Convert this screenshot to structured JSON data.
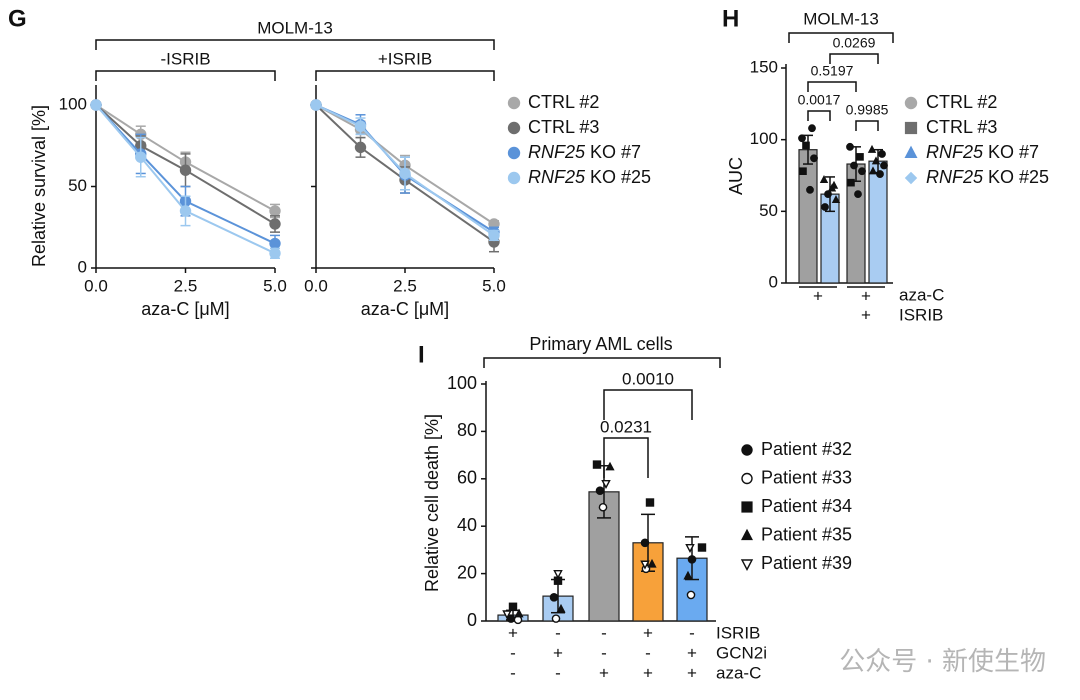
{
  "colors": {
    "ctrl2": "#a8a8a8",
    "ctrl3": "#6e6e6e",
    "ko7": "#5b93d9",
    "ko25": "#9cc8ef",
    "bar_gray": "#a0a0a0",
    "bar_blue": "#a9ccf2",
    "bar_orange": "#f7a13a",
    "bar_bluedark": "#6aaaf0"
  },
  "chart_data": [
    {
      "panel": "G",
      "type": "line",
      "group_label": "MOLM-13",
      "subplots": [
        {
          "subtitle": "-ISRIB",
          "x": [
            0.0,
            1.25,
            2.5,
            5.0
          ],
          "series": [
            {
              "name": "CTRL #2",
              "values": [
                100,
                82,
                65,
                35
              ],
              "err": [
                0,
                5,
                6,
                4
              ]
            },
            {
              "name": "CTRL #3",
              "values": [
                100,
                75,
                60,
                27
              ],
              "err": [
                0,
                6,
                10,
                5
              ]
            },
            {
              "name": "RNF25 KO #7",
              "values": [
                100,
                70,
                41,
                15
              ],
              "err": [
                0,
                12,
                9,
                5
              ]
            },
            {
              "name": "RNF25 KO #25",
              "values": [
                100,
                68,
                35,
                9
              ],
              "err": [
                0,
                12,
                9,
                3
              ]
            }
          ]
        },
        {
          "subtitle": "+ISRIB",
          "x": [
            0.0,
            1.25,
            2.5,
            5.0
          ],
          "series": [
            {
              "name": "CTRL #2",
              "values": [
                100,
                85,
                63,
                27
              ],
              "err": [
                0,
                5,
                6,
                2
              ]
            },
            {
              "name": "CTRL #3",
              "values": [
                100,
                74,
                54,
                16
              ],
              "err": [
                0,
                6,
                8,
                6
              ]
            },
            {
              "name": "RNF25 KO #7",
              "values": [
                100,
                88,
                57,
                22
              ],
              "err": [
                0,
                6,
                11,
                3
              ]
            },
            {
              "name": "RNF25 KO #25",
              "values": [
                100,
                87,
                58,
                20
              ],
              "err": [
                0,
                5,
                10,
                3
              ]
            }
          ]
        }
      ],
      "xlabel": "aza-C [μM]",
      "ylabel": "Relative survival [%]",
      "xlim": [
        0,
        5
      ],
      "ylim": [
        0,
        100
      ],
      "xticks": [
        "0.0",
        "2.5",
        "5.0"
      ],
      "yticks": [
        "0",
        "50",
        "100"
      ],
      "legend": [
        "CTRL #2",
        "CTRL #3",
        "RNF25 KO #7",
        "RNF25 KO #25"
      ]
    },
    {
      "panel": "H",
      "type": "bar",
      "group_label": "MOLM-13",
      "ylabel": "AUC",
      "ylim": [
        0,
        150
      ],
      "yticks": [
        "0",
        "50",
        "100",
        "150"
      ],
      "bars": [
        {
          "name": "CTRL",
          "value": 93,
          "err": 10
        },
        {
          "name": "RNF25 KO",
          "value": 62,
          "err": 12
        },
        {
          "name": "CTRL",
          "value": 83,
          "err": 12
        },
        {
          "name": "RNF25 KO",
          "value": 85,
          "err": 8
        }
      ],
      "points": [
        [
          101,
          108,
          96,
          87,
          78,
          65
        ],
        [
          72,
          68,
          62,
          58,
          53,
          66
        ],
        [
          95,
          88,
          82,
          78,
          70,
          62
        ],
        [
          93,
          90,
          85,
          82,
          78,
          76
        ]
      ],
      "pvalues": [
        "0.0017",
        "0.5197",
        "0.0269",
        "0.9985"
      ],
      "conditions": {
        "rows": [
          "aza-C",
          "ISRIB"
        ],
        "aza_c": [
          "+",
          "+"
        ],
        "isrib": [
          "",
          "+"
        ]
      },
      "legend": [
        "CTRL #2",
        "CTRL #3",
        "RNF25 KO #7",
        "RNF25 KO #25"
      ]
    },
    {
      "panel": "I",
      "type": "bar",
      "group_label": "Primary AML cells",
      "ylabel": "Relative cell death [%]",
      "ylim": [
        0,
        100
      ],
      "yticks": [
        "0",
        "20",
        "40",
        "60",
        "80",
        "100"
      ],
      "bars": [
        {
          "value": 2.5,
          "err": 2
        },
        {
          "value": 10.5,
          "err": 7
        },
        {
          "value": 54.5,
          "err": 11
        },
        {
          "value": 33,
          "err": 12
        },
        {
          "value": 26.5,
          "err": 9
        }
      ],
      "points": [
        {
          "p32": 1,
          "p33": 0.5,
          "p34": 6,
          "p35": 3,
          "p39": 3
        },
        {
          "p32": 10,
          "p33": 1,
          "p34": 17,
          "p35": 5,
          "p39": 20
        },
        {
          "p32": 55,
          "p33": 48,
          "p34": 66,
          "p35": 65,
          "p39": 58
        },
        {
          "p32": 33,
          "p33": 22,
          "p34": 50,
          "p35": 24,
          "p39": 24
        },
        {
          "p32": 26,
          "p33": 11,
          "p34": 31,
          "p35": 19,
          "p39": 31
        }
      ],
      "pvalues": [
        "0.0231",
        "0.0010"
      ],
      "conditions": {
        "rows": [
          "ISRIB",
          "GCN2i",
          "aza-C"
        ],
        "ISRIB": [
          "+",
          "-",
          "-",
          "+",
          "-"
        ],
        "GCN2i": [
          "-",
          "+",
          "-",
          "-",
          "+"
        ],
        "aza-C": [
          "-",
          "-",
          "+",
          "+",
          "+"
        ]
      },
      "legend": [
        "Patient #32",
        "Patient #33",
        "Patient #34",
        "Patient #35",
        "Patient #39"
      ]
    }
  ],
  "panels": {
    "G": "G",
    "H": "H",
    "I": "I"
  },
  "legend_ko_gene": "RNF25",
  "legend_ko_suffix": [
    " KO #7",
    " KO #25"
  ],
  "watermark": "公众号 · 新使生物"
}
